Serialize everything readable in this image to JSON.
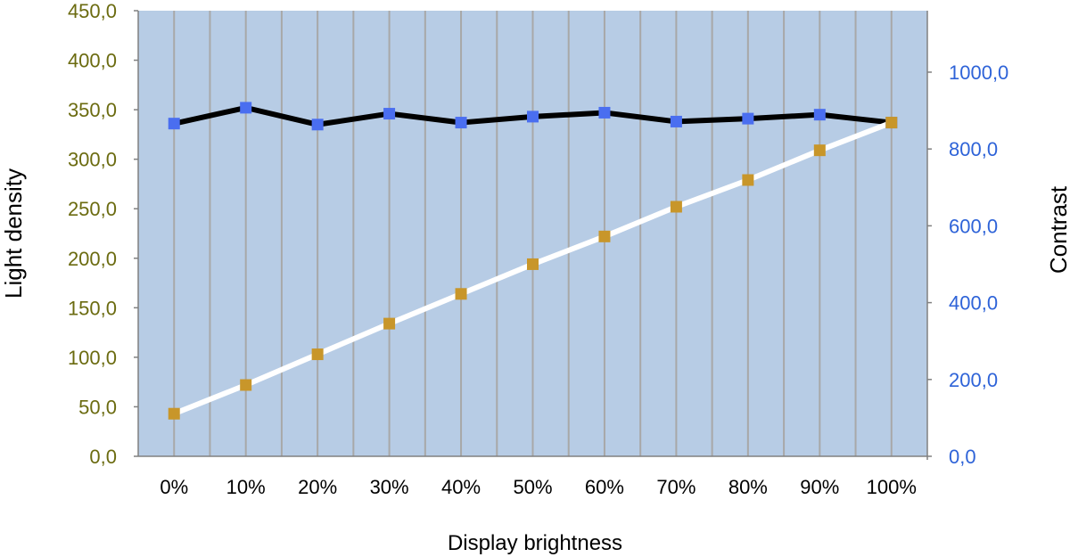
{
  "chart_data": {
    "type": "line",
    "categories": [
      "0%",
      "10%",
      "20%",
      "30%",
      "40%",
      "50%",
      "60%",
      "70%",
      "80%",
      "90%",
      "100%"
    ],
    "xlabel": "Display brightness",
    "ylabel_left": "Light density",
    "ylabel_right": "Contrast",
    "ylim_left": [
      0,
      450
    ],
    "ylim_right": [
      0,
      1160
    ],
    "yticks_left": [
      "0,0",
      "50,0",
      "100,0",
      "150,0",
      "200,0",
      "250,0",
      "300,0",
      "350,0",
      "400,0",
      "450,0"
    ],
    "yticks_right": [
      "0,0",
      "200,0",
      "400,0",
      "600,0",
      "800,0",
      "1000,0"
    ],
    "grid": "vertical",
    "series": [
      {
        "axis": "left",
        "line_color": "#000000",
        "marker_color": "#4a6ef0",
        "values": [
          336,
          352,
          335,
          346,
          337,
          343,
          347,
          338,
          341,
          345,
          337
        ]
      },
      {
        "axis": "left",
        "line_color": "#ffffff",
        "marker_color": "#c8962a",
        "values": [
          43,
          72,
          103,
          134,
          164,
          194,
          222,
          252,
          279,
          309,
          337
        ]
      }
    ],
    "colors": {
      "plot_bg": "#b7cce5",
      "grid": "#a8a8a8",
      "left_tick": "#6b6b10",
      "right_tick": "#2e63d8"
    }
  }
}
